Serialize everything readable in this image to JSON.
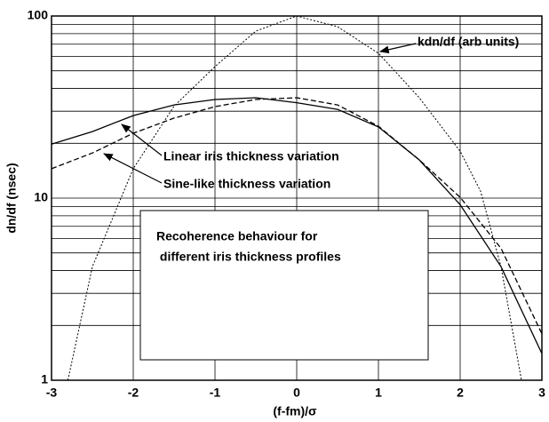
{
  "chart_data": {
    "type": "line",
    "xlabel": "(f-fm)/σ",
    "ylabel": "dn/df (nsec)",
    "xlim": [
      -3,
      3
    ],
    "ylim": [
      1,
      100
    ],
    "log_y": true,
    "grid": true,
    "xticks": [
      -3,
      -2,
      -1,
      0,
      1,
      2,
      3
    ],
    "yticks": [
      1,
      10,
      100
    ],
    "minor_yticks": [
      2,
      3,
      4,
      5,
      6,
      7,
      8,
      9,
      20,
      30,
      40,
      50,
      60,
      70,
      80,
      90
    ],
    "series": [
      {
        "name": "Linear iris thickness variation",
        "color": "#000",
        "dash": "solid",
        "x": [
          -3,
          -2.5,
          -2,
          -1.5,
          -1,
          -0.5,
          0,
          0.5,
          1,
          1.5,
          2,
          2.5,
          3
        ],
        "values": [
          19.8,
          23.2,
          28.4,
          32.5,
          34.8,
          35.6,
          33.4,
          30.7,
          24.6,
          16.2,
          9.2,
          4.2,
          1.4
        ]
      },
      {
        "name": "Sine-like thickness variation",
        "color": "#000",
        "dash": "dashed",
        "x": [
          -3,
          -2.5,
          -2,
          -1.5,
          -1,
          -0.5,
          0,
          0.5,
          1,
          1.5,
          2,
          2.5,
          3
        ],
        "values": [
          14.5,
          17.7,
          22.7,
          27.5,
          31.8,
          34.8,
          35.6,
          32.5,
          24.8,
          16.2,
          10.1,
          5.3,
          1.8
        ]
      },
      {
        "name": "kdn/df (arb units)",
        "color": "#000",
        "dash": "dotted",
        "x": [
          -2.8,
          -2.5,
          -2,
          -1.5,
          -1,
          -0.5,
          0,
          0.5,
          1,
          1.5,
          2,
          2.25,
          2.5,
          2.75
        ],
        "values": [
          1,
          4.2,
          14.5,
          32,
          52.7,
          82.6,
          100,
          87.4,
          62.4,
          35.6,
          18.1,
          10.9,
          4.2,
          1
        ]
      }
    ],
    "box_text": [
      "Recoherence behaviour for",
      " different iris thickness profiles"
    ]
  }
}
